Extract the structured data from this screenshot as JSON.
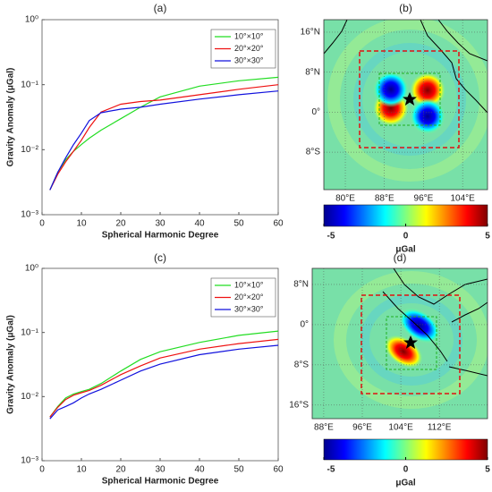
{
  "chart_data": [
    {
      "type": "line",
      "title": "(a)",
      "xlabel": "Spherical Harmonic Degree",
      "ylabel": "Gravity Anomaly (μGal)",
      "x": [
        2,
        4,
        6,
        8,
        10,
        12,
        15,
        20,
        25,
        30,
        40,
        50,
        60
      ],
      "series": [
        {
          "name": "10°×10°",
          "color": "#22dd22",
          "values": [
            0.0024,
            0.0045,
            0.007,
            0.0095,
            0.012,
            0.015,
            0.02,
            0.03,
            0.045,
            0.065,
            0.095,
            0.115,
            0.13
          ]
        },
        {
          "name": "20°×20°",
          "color": "#ee1111",
          "values": [
            0.0024,
            0.0042,
            0.0065,
            0.0095,
            0.014,
            0.022,
            0.038,
            0.05,
            0.055,
            0.058,
            0.07,
            0.085,
            0.1
          ]
        },
        {
          "name": "30°×30°",
          "color": "#1111dd",
          "values": [
            0.0024,
            0.0045,
            0.0075,
            0.012,
            0.018,
            0.028,
            0.037,
            0.042,
            0.045,
            0.05,
            0.06,
            0.07,
            0.08
          ]
        }
      ],
      "xlim": [
        0,
        60
      ],
      "xticks": [
        0,
        10,
        20,
        30,
        40,
        50,
        60
      ],
      "ylim": [
        0.001,
        1
      ],
      "log_y": true,
      "yticks": [
        {
          "value": 0.001,
          "label": "10⁻³"
        },
        {
          "value": 0.01,
          "label": "10⁻²"
        },
        {
          "value": 0.1,
          "label": "10⁻¹"
        },
        {
          "value": 1,
          "label": "10⁰"
        }
      ],
      "legend": "upper right"
    },
    {
      "type": "map",
      "title": "(b)",
      "xlim": [
        75.6,
        109.1
      ],
      "ylim": [
        -15.5,
        18.5
      ],
      "xticks": [
        {
          "value": 80,
          "label": "80°E"
        },
        {
          "value": 88,
          "label": "88°E"
        },
        {
          "value": 96,
          "label": "96°E"
        },
        {
          "value": 104,
          "label": "104°E"
        }
      ],
      "yticks": [
        {
          "value": -8,
          "label": "8°S"
        },
        {
          "value": 0,
          "label": "0°"
        },
        {
          "value": 8,
          "label": "8°N"
        },
        {
          "value": 16,
          "label": "16°N"
        }
      ],
      "colorbar": {
        "label": "μGal",
        "lim": [
          -5,
          5
        ],
        "ticks": [
          -5,
          0,
          5
        ]
      }
    },
    {
      "type": "line",
      "title": "(c)",
      "xlabel": "Spherical Harmonic Degree",
      "ylabel": "Gravity Anomaly (μGal)",
      "x": [
        2,
        4,
        6,
        8,
        10,
        12,
        15,
        20,
        25,
        30,
        40,
        50,
        60
      ],
      "series": [
        {
          "name": "10°×10°",
          "color": "#22dd22",
          "values": [
            0.0048,
            0.007,
            0.0095,
            0.011,
            0.012,
            0.013,
            0.016,
            0.025,
            0.038,
            0.05,
            0.07,
            0.09,
            0.105
          ]
        },
        {
          "name": "20°×20°",
          "color": "#ee1111",
          "values": [
            0.0048,
            0.0068,
            0.009,
            0.0105,
            0.0115,
            0.0125,
            0.015,
            0.022,
            0.03,
            0.04,
            0.055,
            0.067,
            0.078
          ]
        },
        {
          "name": "30°×30°",
          "color": "#1111dd",
          "values": [
            0.0045,
            0.0062,
            0.007,
            0.008,
            0.0095,
            0.011,
            0.013,
            0.018,
            0.025,
            0.032,
            0.045,
            0.055,
            0.063
          ]
        }
      ],
      "xlim": [
        0,
        60
      ],
      "xticks": [
        0,
        10,
        20,
        30,
        40,
        50,
        60
      ],
      "ylim": [
        0.001,
        1
      ],
      "log_y": true,
      "yticks": [
        {
          "value": 0.001,
          "label": "10⁻³"
        },
        {
          "value": 0.01,
          "label": "10⁻²"
        },
        {
          "value": 0.1,
          "label": "10⁻¹"
        },
        {
          "value": 1,
          "label": "10⁰"
        }
      ],
      "legend": "upper right"
    },
    {
      "type": "map",
      "title": "(d)",
      "xlim": [
        85.6,
        122
      ],
      "ylim": [
        -18.7,
        11.2
      ],
      "xticks": [
        {
          "value": 88,
          "label": "88°E"
        },
        {
          "value": 96,
          "label": "96°E"
        },
        {
          "value": 104,
          "label": "104°E"
        },
        {
          "value": 112,
          "label": "112°E"
        }
      ],
      "yticks": [
        {
          "value": -16,
          "label": "16°S"
        },
        {
          "value": -8,
          "label": "8°S"
        },
        {
          "value": 0,
          "label": "0°"
        },
        {
          "value": 8,
          "label": "8°N"
        }
      ],
      "colorbar": {
        "label": "μGal",
        "lim": [
          -5,
          5
        ],
        "ticks": [
          -5,
          0,
          5
        ]
      }
    }
  ]
}
